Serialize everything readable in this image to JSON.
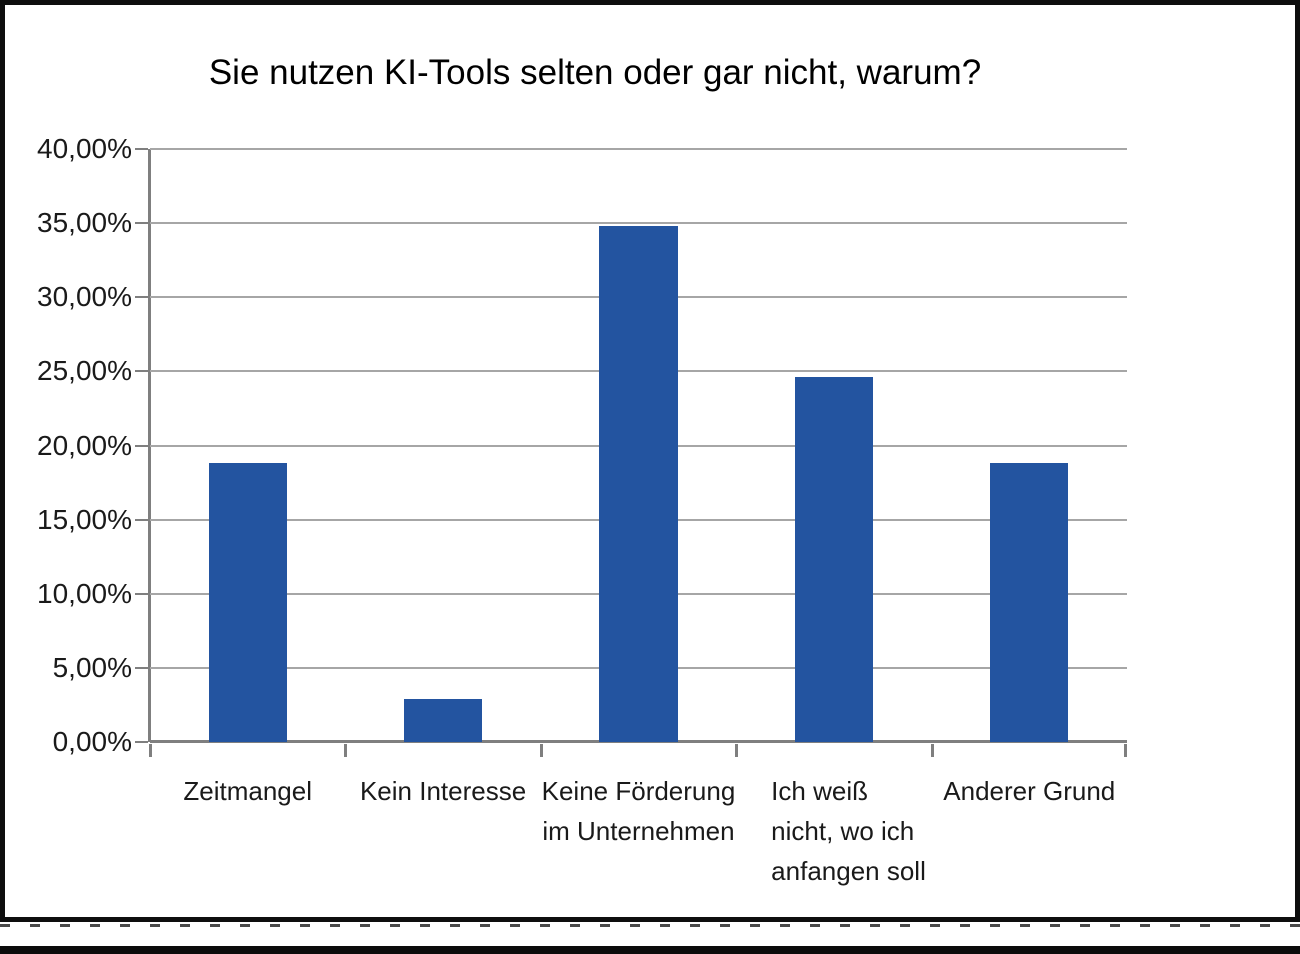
{
  "window": {
    "background": "#ffffff",
    "frame_color": "#0e0e0e"
  },
  "chart_data": {
    "type": "bar",
    "title": "Sie nutzen KI-Tools selten oder gar nicht, warum?",
    "categories": [
      "Zeitmangel",
      "Kein Interesse",
      "Keine Förderung\nim Unternehmen",
      "Ich weiß\nnicht, wo ich\nanfangen soll",
      "Anderer Grund"
    ],
    "values": [
      18.84,
      2.9,
      34.78,
      24.64,
      18.84
    ],
    "xlabel": "",
    "ylabel": "",
    "ylim": [
      0,
      40
    ],
    "y_ticks": [
      {
        "value": 0,
        "label": "0,00%"
      },
      {
        "value": 5,
        "label": "5,00%"
      },
      {
        "value": 10,
        "label": "10,00%"
      },
      {
        "value": 15,
        "label": "15,00%"
      },
      {
        "value": 20,
        "label": "20,00%"
      },
      {
        "value": 25,
        "label": "25,00%"
      },
      {
        "value": 30,
        "label": "30,00%"
      },
      {
        "value": 35,
        "label": "35,00%"
      },
      {
        "value": 40,
        "label": "40,00%"
      }
    ],
    "grid": true,
    "legend": false,
    "bar_gap_ratio": 0.4,
    "bar_color": "#2354a0",
    "gridline_color": "#a6a6a6",
    "axis_color": "#7f7f7f",
    "title_color": "#000000",
    "label_color": "#1a1a1a",
    "category_text_align": [
      "center",
      "center",
      "center",
      "left",
      "center"
    ]
  }
}
